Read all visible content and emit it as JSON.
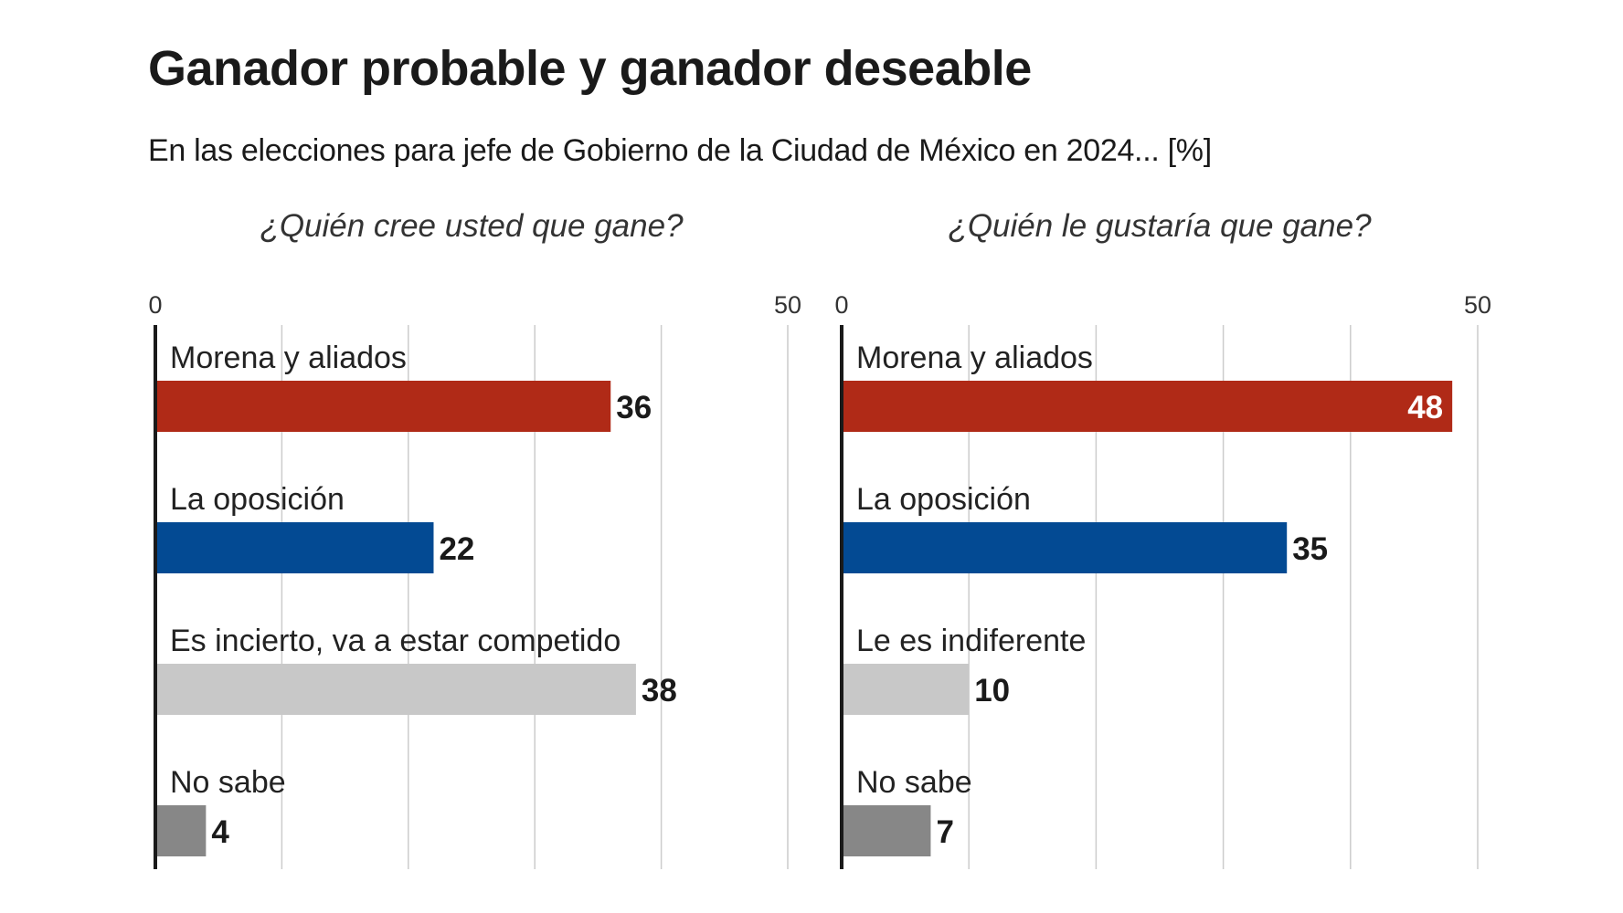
{
  "title": "Ganador probable y ganador deseable",
  "subtitle": "En las elecciones para jefe de Gobierno de la Ciudad de México en 2024... [%]",
  "chart_data": [
    {
      "type": "bar",
      "orientation": "horizontal",
      "title": "¿Quién cree usted que gane?",
      "categories": [
        "Morena y aliados",
        "La oposición",
        "Es incierto, va a estar competido",
        "No sabe"
      ],
      "values": [
        36,
        22,
        38,
        4
      ],
      "colors": [
        "#b02a17",
        "#034a93",
        "#c8c8c8",
        "#878787"
      ],
      "value_label_inside": [
        false,
        false,
        false,
        false
      ],
      "xlim": [
        0,
        50
      ],
      "xticks": [
        0,
        10,
        20,
        30,
        40,
        50
      ],
      "xtick_labels": [
        "0",
        "50"
      ],
      "grid": true,
      "unit": "%"
    },
    {
      "type": "bar",
      "orientation": "horizontal",
      "title": "¿Quién le gustaría que gane?",
      "categories": [
        "Morena y aliados",
        "La oposición",
        "Le es indiferente",
        "No sabe"
      ],
      "values": [
        48,
        35,
        10,
        7
      ],
      "colors": [
        "#b02a17",
        "#034a93",
        "#c8c8c8",
        "#878787"
      ],
      "value_label_inside": [
        true,
        false,
        false,
        false
      ],
      "xlim": [
        0,
        50
      ],
      "xticks": [
        0,
        10,
        20,
        30,
        40,
        50
      ],
      "xtick_labels": [
        "0",
        "50"
      ],
      "grid": true,
      "unit": "%"
    }
  ]
}
